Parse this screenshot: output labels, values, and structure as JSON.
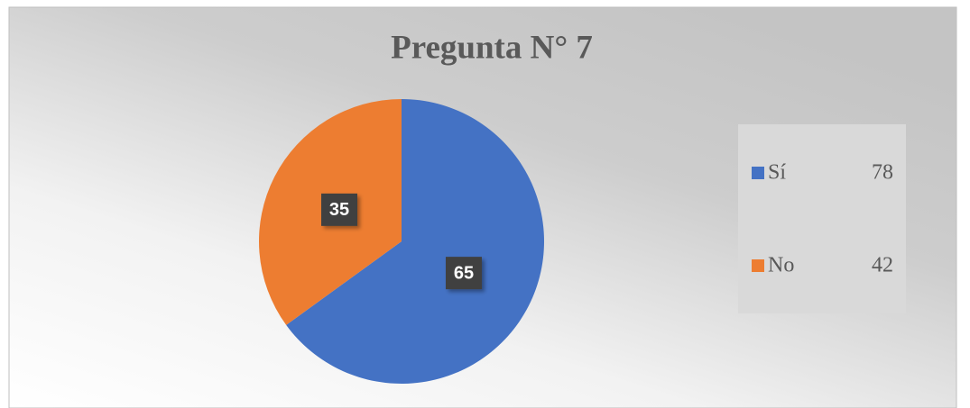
{
  "chart_data": {
    "type": "pie",
    "title": "Pregunta N° 7",
    "categories": [
      "Sí",
      "No"
    ],
    "values": [
      65,
      35
    ],
    "colors": [
      "#4472c4",
      "#ed7d31"
    ],
    "legend_values": [
      78,
      42
    ],
    "legend": "right"
  }
}
